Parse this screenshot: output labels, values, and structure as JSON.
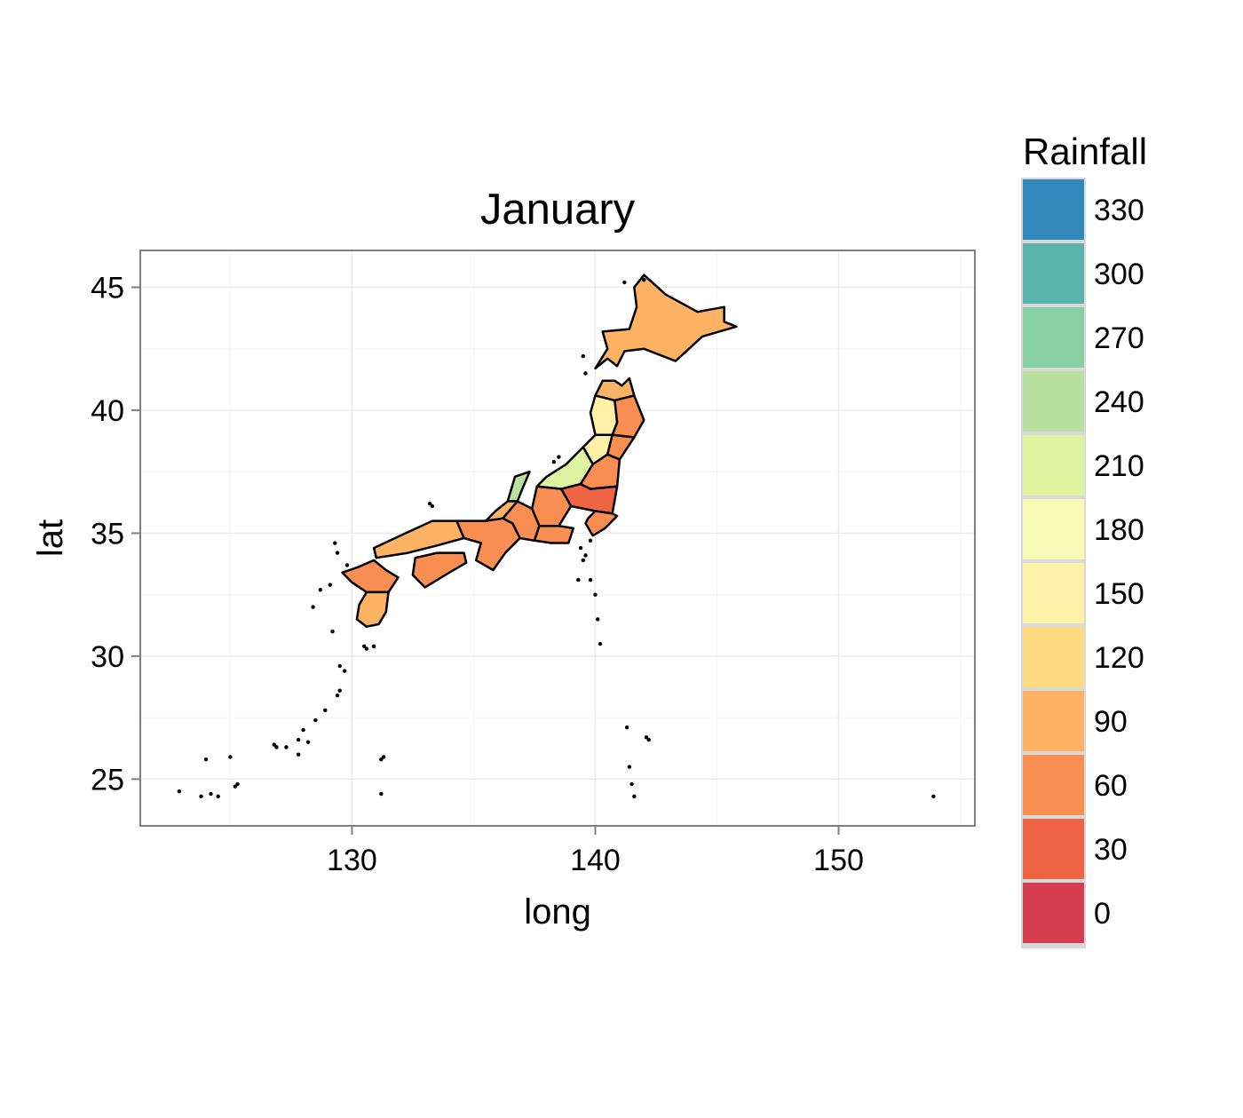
{
  "title": "January",
  "x_axis": {
    "label": "long",
    "range": [
      121.3,
      155.6
    ],
    "ticks": [
      130,
      140,
      150
    ],
    "minor": [
      125,
      135,
      145,
      155
    ]
  },
  "y_axis": {
    "label": "lat",
    "range": [
      23.1,
      46.5
    ],
    "ticks": [
      25,
      30,
      35,
      40,
      45
    ],
    "minor": [
      27.5,
      32.5,
      37.5,
      42.5
    ]
  },
  "legend": {
    "title": "Rainfall",
    "keys": [
      {
        "label": "330",
        "color": "#3288bd"
      },
      {
        "label": "300",
        "color": "#5ab4ac"
      },
      {
        "label": "270",
        "color": "#88cfa4"
      },
      {
        "label": "240",
        "color": "#b8e1a0"
      },
      {
        "label": "210",
        "color": "#e0f3a0"
      },
      {
        "label": "180",
        "color": "#f7fab4"
      },
      {
        "label": "150",
        "color": "#fff1a8"
      },
      {
        "label": "120",
        "color": "#fed980"
      },
      {
        "label": "90",
        "color": "#fdb264"
      },
      {
        "label": "60",
        "color": "#f98e52"
      },
      {
        "label": "30",
        "color": "#ee6445"
      },
      {
        "label": "0",
        "color": "#d53e4f"
      }
    ]
  },
  "chart_data": {
    "type": "choropleth",
    "title": "January",
    "xlabel": "long",
    "ylabel": "lat",
    "xlim": [
      121.3,
      155.6
    ],
    "ylim": [
      23.1,
      46.5
    ],
    "grid": true,
    "legend_position": "right",
    "regions": [
      {
        "id": "hokkaido",
        "color": "#fdb264",
        "outline": [
          [
            140.0,
            41.7
          ],
          [
            140.5,
            42.5
          ],
          [
            140.3,
            43.2
          ],
          [
            141.4,
            43.3
          ],
          [
            141.7,
            44.2
          ],
          [
            141.6,
            45.0
          ],
          [
            142.0,
            45.5
          ],
          [
            142.9,
            44.7
          ],
          [
            144.2,
            44.0
          ],
          [
            145.3,
            44.2
          ],
          [
            145.3,
            43.6
          ],
          [
            145.8,
            43.4
          ],
          [
            144.4,
            43.0
          ],
          [
            143.3,
            42.0
          ],
          [
            142.0,
            42.5
          ],
          [
            141.2,
            42.4
          ],
          [
            140.9,
            41.8
          ],
          [
            140.5,
            42.1
          ]
        ]
      },
      {
        "id": "aomori",
        "color": "#fdb264",
        "outline": [
          [
            140.0,
            40.6
          ],
          [
            140.3,
            41.2
          ],
          [
            140.8,
            41.2
          ],
          [
            141.1,
            41.0
          ],
          [
            141.4,
            41.3
          ],
          [
            141.6,
            40.6
          ],
          [
            140.8,
            40.4
          ]
        ]
      },
      {
        "id": "akita",
        "color": "#fff1a8",
        "outline": [
          [
            140.0,
            40.6
          ],
          [
            140.8,
            40.4
          ],
          [
            140.9,
            39.5
          ],
          [
            140.7,
            39.0
          ],
          [
            140.0,
            39.0
          ],
          [
            139.8,
            39.9
          ]
        ]
      },
      {
        "id": "iwate",
        "color": "#f98e52",
        "outline": [
          [
            140.8,
            40.4
          ],
          [
            141.6,
            40.6
          ],
          [
            142.0,
            39.6
          ],
          [
            141.6,
            38.9
          ],
          [
            140.7,
            39.0
          ],
          [
            140.9,
            39.5
          ]
        ]
      },
      {
        "id": "yamagata",
        "color": "#fff1a8",
        "outline": [
          [
            140.0,
            39.0
          ],
          [
            140.7,
            39.0
          ],
          [
            140.5,
            38.2
          ],
          [
            139.9,
            37.8
          ],
          [
            139.5,
            38.5
          ]
        ]
      },
      {
        "id": "miyagi",
        "color": "#f98e52",
        "outline": [
          [
            140.7,
            39.0
          ],
          [
            141.6,
            38.9
          ],
          [
            141.0,
            38.0
          ],
          [
            140.5,
            38.2
          ]
        ]
      },
      {
        "id": "niigata",
        "color": "#e0f3a0",
        "outline": [
          [
            139.5,
            38.5
          ],
          [
            139.9,
            37.8
          ],
          [
            139.4,
            37.0
          ],
          [
            138.6,
            36.8
          ],
          [
            137.6,
            36.9
          ],
          [
            138.0,
            37.3
          ],
          [
            138.8,
            37.8
          ]
        ]
      },
      {
        "id": "fukushima",
        "color": "#f98e52",
        "outline": [
          [
            139.9,
            37.8
          ],
          [
            140.5,
            38.2
          ],
          [
            141.0,
            38.0
          ],
          [
            140.9,
            36.9
          ],
          [
            139.8,
            36.8
          ],
          [
            139.4,
            37.0
          ]
        ]
      },
      {
        "id": "ibaraki-tochigi-gunma",
        "color": "#ee6445",
        "outline": [
          [
            140.9,
            36.9
          ],
          [
            140.7,
            35.8
          ],
          [
            140.0,
            35.9
          ],
          [
            139.0,
            36.1
          ],
          [
            138.6,
            36.8
          ],
          [
            139.4,
            37.0
          ],
          [
            139.8,
            36.8
          ]
        ]
      },
      {
        "id": "chiba-kanto",
        "color": "#f98e52",
        "outline": [
          [
            140.7,
            35.8
          ],
          [
            140.9,
            35.7
          ],
          [
            140.4,
            35.2
          ],
          [
            139.9,
            34.9
          ],
          [
            139.6,
            35.4
          ],
          [
            139.7,
            35.6
          ],
          [
            140.0,
            35.9
          ]
        ]
      },
      {
        "id": "toyama-nagano",
        "color": "#f98e52",
        "outline": [
          [
            137.6,
            36.9
          ],
          [
            138.6,
            36.8
          ],
          [
            139.0,
            36.1
          ],
          [
            138.5,
            35.3
          ],
          [
            137.7,
            35.3
          ],
          [
            137.4,
            36.0
          ]
        ]
      },
      {
        "id": "ishikawa",
        "color": "#b8e1a0",
        "outline": [
          [
            136.7,
            37.3
          ],
          [
            137.3,
            37.5
          ],
          [
            137.0,
            36.8
          ],
          [
            136.8,
            36.3
          ],
          [
            136.4,
            36.3
          ]
        ]
      },
      {
        "id": "fukui",
        "color": "#fdb264",
        "outline": [
          [
            136.4,
            36.3
          ],
          [
            136.8,
            36.3
          ],
          [
            136.2,
            35.6
          ],
          [
            135.5,
            35.5
          ],
          [
            135.9,
            35.9
          ]
        ]
      },
      {
        "id": "gifu-aichi",
        "color": "#f98e52",
        "outline": [
          [
            136.8,
            36.3
          ],
          [
            137.4,
            36.0
          ],
          [
            137.7,
            35.3
          ],
          [
            137.5,
            34.7
          ],
          [
            136.9,
            34.8
          ],
          [
            136.6,
            35.4
          ],
          [
            136.2,
            35.6
          ]
        ]
      },
      {
        "id": "shizuoka",
        "color": "#f98e52",
        "outline": [
          [
            137.7,
            35.3
          ],
          [
            138.5,
            35.3
          ],
          [
            139.1,
            35.2
          ],
          [
            138.9,
            34.6
          ],
          [
            138.2,
            34.6
          ],
          [
            137.5,
            34.7
          ]
        ]
      },
      {
        "id": "kinki",
        "color": "#f98e52",
        "outline": [
          [
            135.5,
            35.5
          ],
          [
            136.2,
            35.6
          ],
          [
            136.6,
            35.4
          ],
          [
            136.9,
            34.8
          ],
          [
            136.3,
            34.2
          ],
          [
            135.8,
            33.5
          ],
          [
            135.1,
            33.9
          ],
          [
            135.3,
            34.6
          ],
          [
            134.6,
            34.8
          ],
          [
            134.3,
            35.5
          ]
        ]
      },
      {
        "id": "chugoku",
        "color": "#fdb264",
        "outline": [
          [
            134.3,
            35.5
          ],
          [
            134.6,
            34.8
          ],
          [
            133.5,
            34.5
          ],
          [
            132.3,
            34.2
          ],
          [
            131.0,
            34.0
          ],
          [
            130.9,
            34.4
          ],
          [
            132.2,
            35.0
          ],
          [
            133.3,
            35.5
          ]
        ]
      },
      {
        "id": "shikoku",
        "color": "#f98e52",
        "outline": [
          [
            132.6,
            34.0
          ],
          [
            133.5,
            34.2
          ],
          [
            134.6,
            34.2
          ],
          [
            134.7,
            33.8
          ],
          [
            134.0,
            33.4
          ],
          [
            133.0,
            32.8
          ],
          [
            132.5,
            33.3
          ]
        ]
      },
      {
        "id": "kyushu-north",
        "color": "#f98e52",
        "outline": [
          [
            130.2,
            33.6
          ],
          [
            130.9,
            33.9
          ],
          [
            131.4,
            33.5
          ],
          [
            131.9,
            33.2
          ],
          [
            131.5,
            32.6
          ],
          [
            130.6,
            32.6
          ],
          [
            130.0,
            33.0
          ],
          [
            129.6,
            33.4
          ]
        ]
      },
      {
        "id": "kyushu-south",
        "color": "#fdb264",
        "outline": [
          [
            130.6,
            32.6
          ],
          [
            131.5,
            32.6
          ],
          [
            131.4,
            31.8
          ],
          [
            131.1,
            31.3
          ],
          [
            130.6,
            31.2
          ],
          [
            130.2,
            31.5
          ],
          [
            130.3,
            32.1
          ]
        ]
      }
    ],
    "islands": [
      [
        142.0,
        45.3
      ],
      [
        141.2,
        45.2
      ],
      [
        139.5,
        42.2
      ],
      [
        139.6,
        41.5
      ],
      [
        138.5,
        38.1
      ],
      [
        138.3,
        37.9
      ],
      [
        133.2,
        36.2
      ],
      [
        133.3,
        36.1
      ],
      [
        129.3,
        34.6
      ],
      [
        129.4,
        34.2
      ],
      [
        128.7,
        32.7
      ],
      [
        129.1,
        32.9
      ],
      [
        130.5,
        30.4
      ],
      [
        130.6,
        30.3
      ],
      [
        130.9,
        30.4
      ],
      [
        129.7,
        29.4
      ],
      [
        129.5,
        28.6
      ],
      [
        129.4,
        28.4
      ],
      [
        128.9,
        27.8
      ],
      [
        128.5,
        27.4
      ],
      [
        128.0,
        27.0
      ],
      [
        127.8,
        26.6
      ],
      [
        127.3,
        26.3
      ],
      [
        127.8,
        26.0
      ],
      [
        128.2,
        26.5
      ],
      [
        126.8,
        26.4
      ],
      [
        126.9,
        26.3
      ],
      [
        125.3,
        24.8
      ],
      [
        125.2,
        24.7
      ],
      [
        124.2,
        24.4
      ],
      [
        124.5,
        24.3
      ],
      [
        123.8,
        24.3
      ],
      [
        122.9,
        24.5
      ],
      [
        124.0,
        25.8
      ],
      [
        125.0,
        25.9
      ],
      [
        131.2,
        25.8
      ],
      [
        131.3,
        25.9
      ],
      [
        131.2,
        24.4
      ],
      [
        139.8,
        34.7
      ],
      [
        139.4,
        34.4
      ],
      [
        139.6,
        34.1
      ],
      [
        139.5,
        33.9
      ],
      [
        139.8,
        33.1
      ],
      [
        140.0,
        32.5
      ],
      [
        140.1,
        31.5
      ],
      [
        140.2,
        30.5
      ],
      [
        142.2,
        26.6
      ],
      [
        142.1,
        26.7
      ],
      [
        141.3,
        27.1
      ],
      [
        141.4,
        25.5
      ],
      [
        141.5,
        24.8
      ],
      [
        141.6,
        24.3
      ],
      [
        153.9,
        24.3
      ],
      [
        128.4,
        32.0
      ],
      [
        129.2,
        31.0
      ],
      [
        129.8,
        33.7
      ],
      [
        139.3,
        33.1
      ],
      [
        129.5,
        29.6
      ]
    ]
  }
}
